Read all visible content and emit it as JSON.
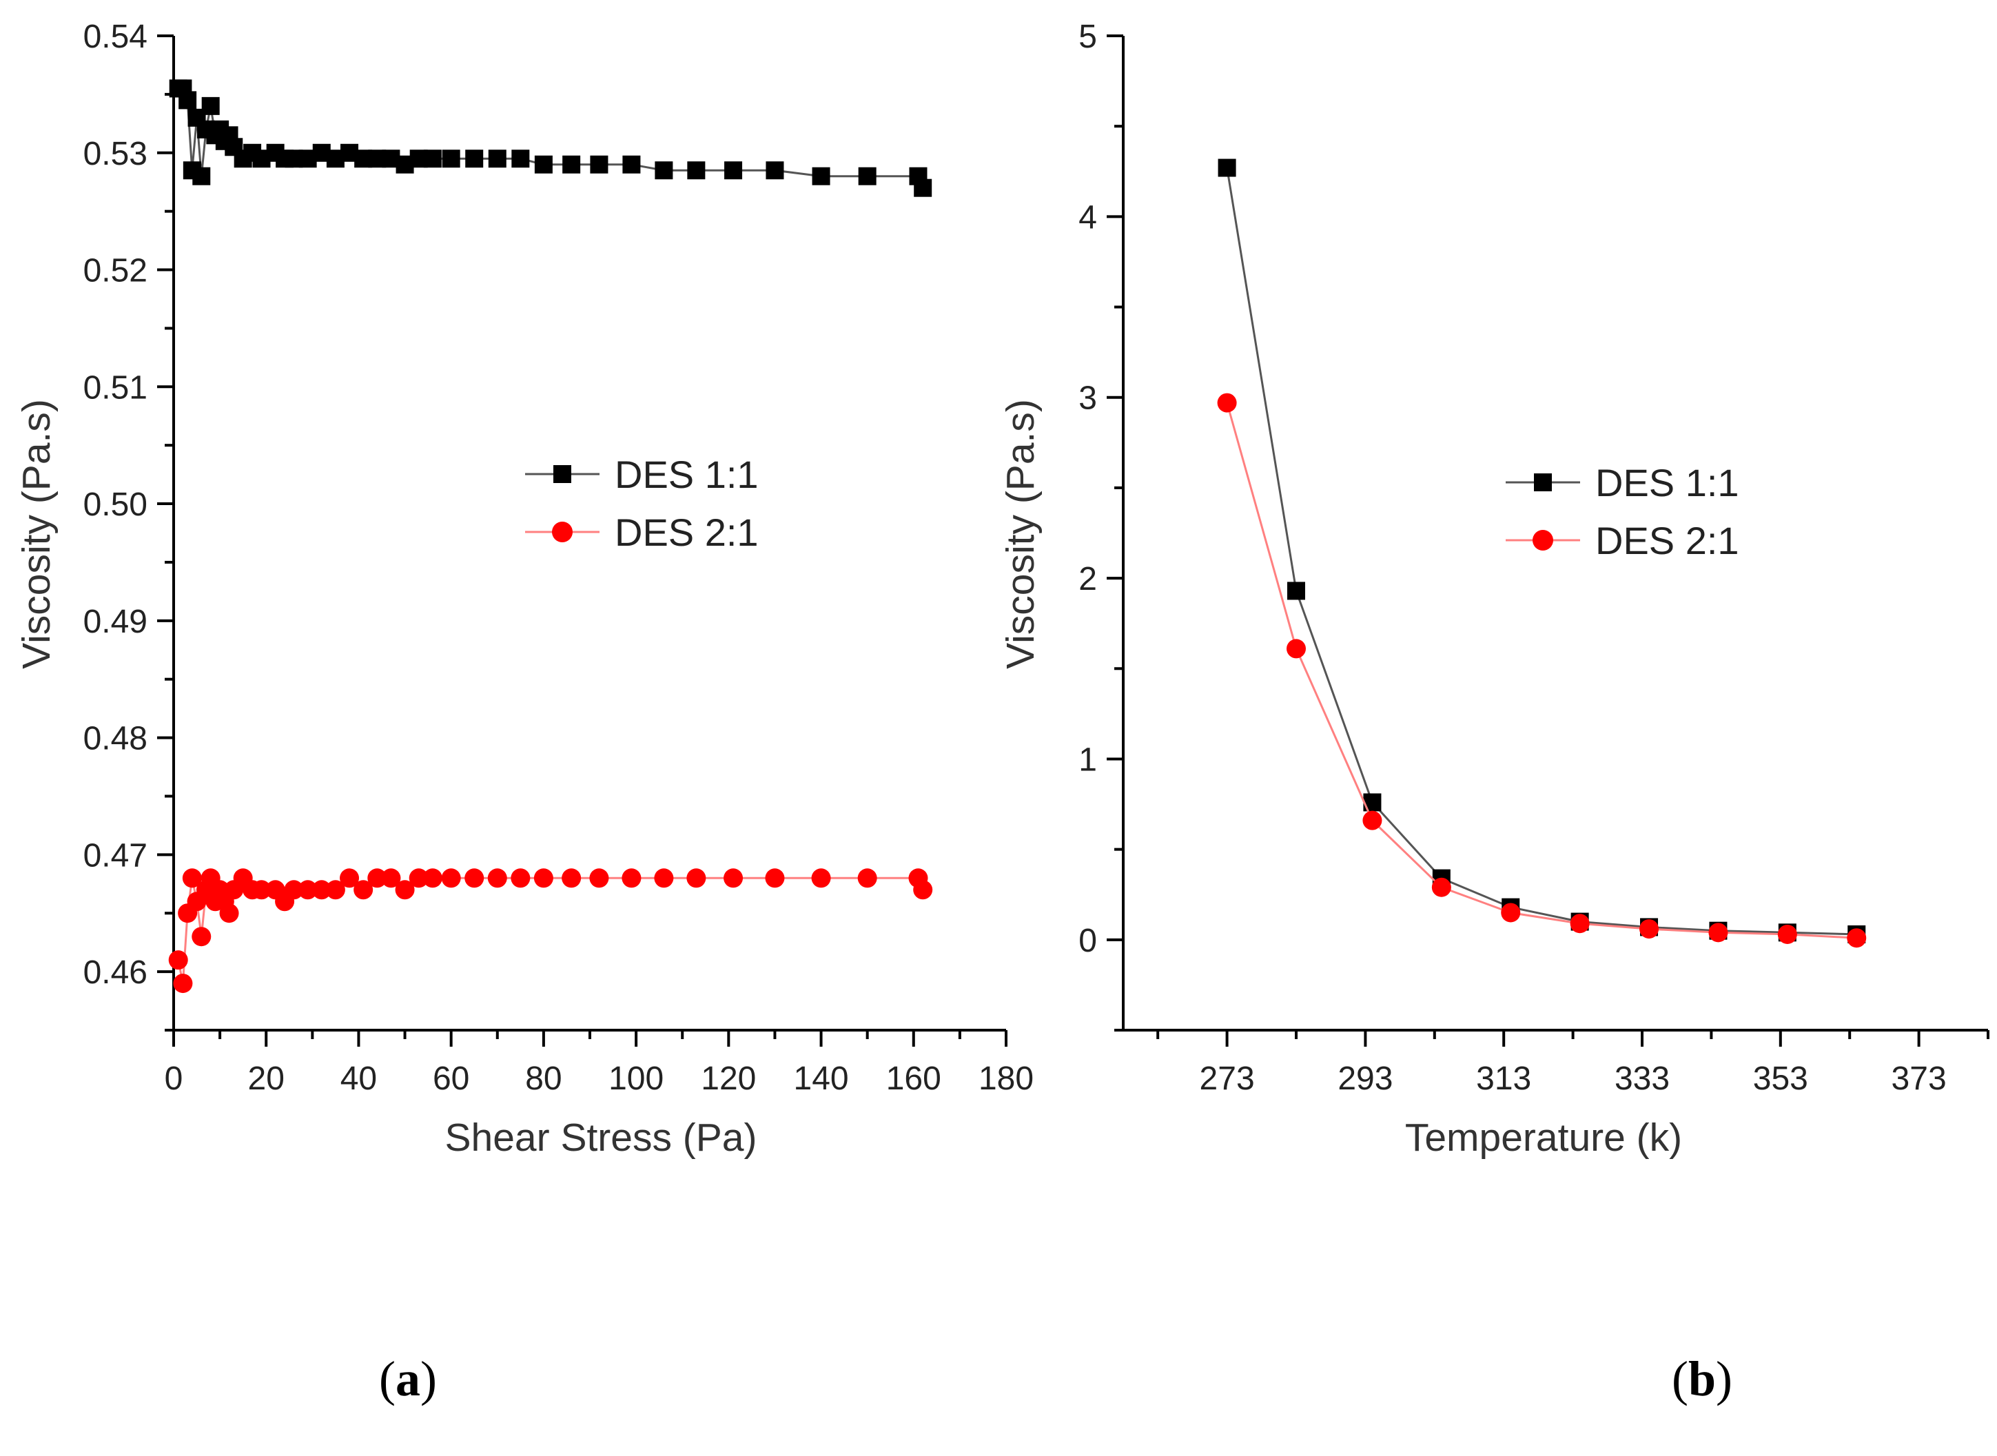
{
  "chart_data": [
    {
      "type": "line",
      "panel_label": "a",
      "panel_label_bold": "a",
      "xlabel": "Shear Stress (Pa)",
      "ylabel": "Viscosity (Pa.s)",
      "xlim": [
        0,
        180
      ],
      "ylim": [
        0.455,
        0.54
      ],
      "xticks": [
        "0",
        "20",
        "40",
        "60",
        "80",
        "100",
        "120",
        "140",
        "160",
        "180"
      ],
      "yticks": [
        "0.46",
        "0.47",
        "0.48",
        "0.49",
        "0.50",
        "0.51",
        "0.52",
        "0.53",
        "0.54"
      ],
      "legend_position": "center-right",
      "series": [
        {
          "name": "DES 1:1",
          "color": "#000000",
          "marker": "square",
          "x": [
            1,
            2,
            3,
            4,
            5,
            6,
            7,
            8,
            9,
            10,
            11,
            12,
            13,
            15,
            17,
            19,
            22,
            24,
            26,
            29,
            32,
            35,
            38,
            41,
            44,
            47,
            50,
            53,
            56,
            60,
            65,
            70,
            75,
            80,
            86,
            92,
            99,
            106,
            113,
            121,
            130,
            140,
            150,
            161,
            162
          ],
          "y": [
            0.5355,
            0.5355,
            0.5345,
            0.5285,
            0.533,
            0.528,
            0.532,
            0.534,
            0.5315,
            0.532,
            0.531,
            0.5315,
            0.5305,
            0.5295,
            0.53,
            0.5295,
            0.53,
            0.5295,
            0.5295,
            0.5295,
            0.53,
            0.5295,
            0.53,
            0.5295,
            0.5295,
            0.5295,
            0.529,
            0.5295,
            0.5295,
            0.5295,
            0.5295,
            0.5295,
            0.5295,
            0.529,
            0.529,
            0.529,
            0.529,
            0.5285,
            0.5285,
            0.5285,
            0.5285,
            0.528,
            0.528,
            0.528,
            0.527
          ]
        },
        {
          "name": "DES 2:1",
          "color": "#ff0000",
          "marker": "circle",
          "x": [
            1,
            2,
            3,
            4,
            5,
            6,
            7,
            8,
            9,
            10,
            11,
            12,
            13,
            15,
            17,
            19,
            22,
            24,
            26,
            29,
            32,
            35,
            38,
            41,
            44,
            47,
            50,
            53,
            56,
            60,
            65,
            70,
            75,
            80,
            86,
            92,
            99,
            106,
            113,
            121,
            130,
            140,
            150,
            161,
            162
          ],
          "y": [
            0.461,
            0.459,
            0.465,
            0.468,
            0.466,
            0.463,
            0.467,
            0.468,
            0.466,
            0.467,
            0.466,
            0.465,
            0.467,
            0.468,
            0.467,
            0.467,
            0.467,
            0.466,
            0.467,
            0.467,
            0.467,
            0.467,
            0.468,
            0.467,
            0.468,
            0.468,
            0.467,
            0.468,
            0.468,
            0.468,
            0.468,
            0.468,
            0.468,
            0.468,
            0.468,
            0.468,
            0.468,
            0.468,
            0.468,
            0.468,
            0.468,
            0.468,
            0.468,
            0.468,
            0.467
          ]
        }
      ]
    },
    {
      "type": "line",
      "panel_label": "b",
      "panel_label_bold": "b",
      "xlabel": "Temperature (k)",
      "ylabel": "Viscosity (Pa.s)",
      "xlim": [
        258,
        383
      ],
      "ylim": [
        -0.5,
        5
      ],
      "xticks": [
        "273",
        "293",
        "313",
        "333",
        "353",
        "373"
      ],
      "yticks": [
        "0",
        "1",
        "2",
        "3",
        "4",
        "5"
      ],
      "legend_position": "center-right",
      "series": [
        {
          "name": "DES 1:1",
          "color": "#000000",
          "marker": "square",
          "x": [
            273,
            283,
            294,
            304,
            314,
            324,
            334,
            344,
            354,
            364
          ],
          "y": [
            4.27,
            1.93,
            0.76,
            0.34,
            0.18,
            0.1,
            0.07,
            0.05,
            0.04,
            0.03
          ]
        },
        {
          "name": "DES 2:1",
          "color": "#ff0000",
          "marker": "circle",
          "x": [
            273,
            283,
            294,
            304,
            314,
            324,
            334,
            344,
            354,
            364
          ],
          "y": [
            2.97,
            1.61,
            0.66,
            0.29,
            0.15,
            0.09,
            0.06,
            0.04,
            0.03,
            0.01
          ]
        }
      ]
    }
  ]
}
